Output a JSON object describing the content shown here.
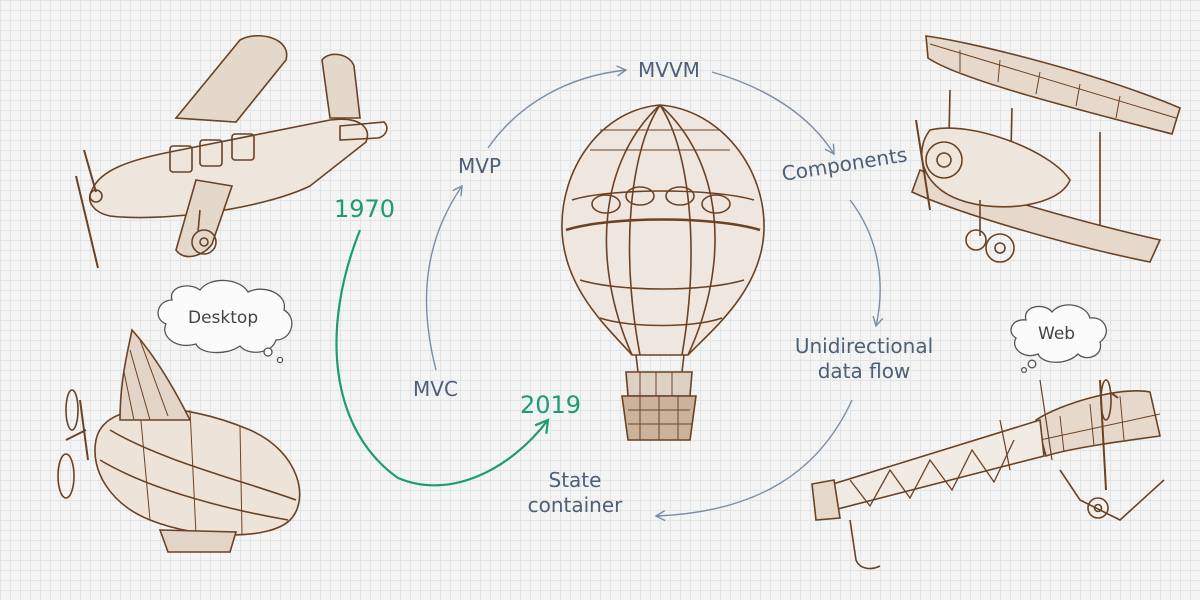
{
  "colors": {
    "ink": "#6b4224",
    "flow_arrow": "#7a8ea6",
    "timeline_arrow": "#1f9a77",
    "label_text": "#4d6078",
    "cloud_text": "#444444",
    "background": "#f3f4f3"
  },
  "cycle": {
    "mvc": "MVC",
    "mvp": "MVP",
    "mvvm": "MVVM",
    "components": "Components",
    "unidirectional_line1": "Unidirectional",
    "unidirectional_line2": "data flow",
    "state_line1": "State",
    "state_line2": "container"
  },
  "timeline": {
    "start_year": "1970",
    "end_year": "2019"
  },
  "thought_bubbles": {
    "desktop": "Desktop",
    "web": "Web"
  },
  "illustrations": {
    "left_top": "monoplane-illustration",
    "left_bottom": "airship-illustration",
    "center": "hot-air-balloon-illustration",
    "right_top": "biplane-illustration",
    "right_bottom": "early-aeroplane-illustration"
  }
}
